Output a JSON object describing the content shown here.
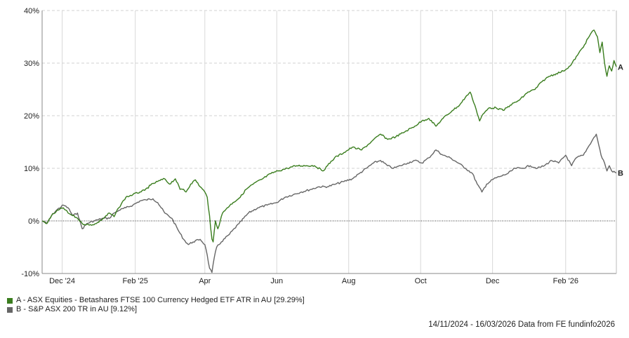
{
  "chart_data": {
    "type": "line",
    "y_axis": {
      "min": -10,
      "max": 40,
      "ticks": [
        -10,
        0,
        10,
        20,
        30,
        40
      ],
      "tick_labels": [
        "-10%",
        "0%",
        "10%",
        "20%",
        "30%",
        "40%"
      ]
    },
    "x_axis": {
      "start": "2024-11-14",
      "end": "2026-03-16",
      "ticks": [
        {
          "date": "2024-12-01",
          "label": "Dec '24"
        },
        {
          "date": "2025-02-01",
          "label": "Feb '25"
        },
        {
          "date": "2025-04-01",
          "label": "Apr"
        },
        {
          "date": "2025-06-01",
          "label": "Jun"
        },
        {
          "date": "2025-08-01",
          "label": "Aug"
        },
        {
          "date": "2025-10-01",
          "label": "Oct"
        },
        {
          "date": "2025-12-01",
          "label": "Dec"
        },
        {
          "date": "2026-02-01",
          "label": "Feb '26"
        }
      ]
    },
    "grid": true,
    "zero_line": true,
    "series": [
      {
        "id": "A",
        "name": "A - ASX Equities - Betashares FTSE 100 Currency Hedged ETF ATR in AU [29.29%]",
        "end_label": "A",
        "color": "#3a7d1e",
        "points": [
          [
            "2024-11-14",
            0
          ],
          [
            "2024-11-18",
            -0.5
          ],
          [
            "2024-11-22",
            1.0
          ],
          [
            "2024-11-26",
            1.8
          ],
          [
            "2024-12-02",
            2.5
          ],
          [
            "2024-12-06",
            1.5
          ],
          [
            "2024-12-10",
            1.0
          ],
          [
            "2024-12-14",
            0.5
          ],
          [
            "2024-12-18",
            -0.5
          ],
          [
            "2024-12-24",
            -0.8
          ],
          [
            "2024-12-30",
            -0.5
          ],
          [
            "2025-01-05",
            0.5
          ],
          [
            "2025-01-10",
            1.5
          ],
          [
            "2025-01-14",
            0.8
          ],
          [
            "2025-01-18",
            2.5
          ],
          [
            "2025-01-24",
            4.5
          ],
          [
            "2025-01-30",
            5.0
          ],
          [
            "2025-02-05",
            5.5
          ],
          [
            "2025-02-09",
            5.8
          ],
          [
            "2025-02-14",
            6.8
          ],
          [
            "2025-02-20",
            7.5
          ],
          [
            "2025-02-26",
            8.0
          ],
          [
            "2025-03-02",
            7.0
          ],
          [
            "2025-03-07",
            8.0
          ],
          [
            "2025-03-11",
            6.0
          ],
          [
            "2025-03-14",
            6.0
          ],
          [
            "2025-03-16",
            5.5
          ],
          [
            "2025-03-20",
            7.0
          ],
          [
            "2025-03-24",
            7.8
          ],
          [
            "2025-03-28",
            6.5
          ],
          [
            "2025-04-01",
            5.5
          ],
          [
            "2025-04-03",
            4.5
          ],
          [
            "2025-04-05",
            1.0
          ],
          [
            "2025-04-06",
            -1.5
          ],
          [
            "2025-04-07",
            -3.5
          ],
          [
            "2025-04-08",
            -4.0
          ],
          [
            "2025-04-10",
            0.0
          ],
          [
            "2025-04-12",
            -1.5
          ],
          [
            "2025-04-16",
            1.5
          ],
          [
            "2025-04-20",
            2.5
          ],
          [
            "2025-04-25",
            3.5
          ],
          [
            "2025-05-01",
            4.5
          ],
          [
            "2025-05-06",
            6.0
          ],
          [
            "2025-05-12",
            7.0
          ],
          [
            "2025-05-20",
            8.0
          ],
          [
            "2025-05-27",
            9.0
          ],
          [
            "2025-06-02",
            9.5
          ],
          [
            "2025-06-10",
            10.0
          ],
          [
            "2025-06-18",
            10.5
          ],
          [
            "2025-06-26",
            10.5
          ],
          [
            "2025-07-03",
            10.5
          ],
          [
            "2025-07-10",
            9.5
          ],
          [
            "2025-07-14",
            10.5
          ],
          [
            "2025-07-20",
            12.0
          ],
          [
            "2025-07-28",
            13.0
          ],
          [
            "2025-08-04",
            14.0
          ],
          [
            "2025-08-12",
            13.5
          ],
          [
            "2025-08-20",
            15.0
          ],
          [
            "2025-08-28",
            16.5
          ],
          [
            "2025-09-03",
            15.5
          ],
          [
            "2025-09-10",
            16.0
          ],
          [
            "2025-09-18",
            17.0
          ],
          [
            "2025-09-26",
            18.0
          ],
          [
            "2025-10-02",
            19.0
          ],
          [
            "2025-10-08",
            19.5
          ],
          [
            "2025-10-14",
            18.0
          ],
          [
            "2025-10-20",
            19.5
          ],
          [
            "2025-10-28",
            21.0
          ],
          [
            "2025-11-03",
            22.0
          ],
          [
            "2025-11-08",
            23.5
          ],
          [
            "2025-11-12",
            24.5
          ],
          [
            "2025-11-16",
            22.0
          ],
          [
            "2025-11-20",
            19.0
          ],
          [
            "2025-11-22",
            20.0
          ],
          [
            "2025-11-28",
            21.5
          ],
          [
            "2025-12-04",
            21.5
          ],
          [
            "2025-12-10",
            21.0
          ],
          [
            "2025-12-16",
            22.0
          ],
          [
            "2025-12-24",
            23.0
          ],
          [
            "2025-12-31",
            24.5
          ],
          [
            "2026-01-06",
            25.0
          ],
          [
            "2026-01-12",
            26.5
          ],
          [
            "2026-01-18",
            27.5
          ],
          [
            "2026-01-24",
            28.0
          ],
          [
            "2026-01-30",
            28.5
          ],
          [
            "2026-02-05",
            29.5
          ],
          [
            "2026-02-11",
            31.5
          ],
          [
            "2026-02-17",
            33.5
          ],
          [
            "2026-02-22",
            35.5
          ],
          [
            "2026-02-25",
            36.3
          ],
          [
            "2026-02-28",
            35.0
          ],
          [
            "2026-03-02",
            32.0
          ],
          [
            "2026-03-04",
            34.0
          ],
          [
            "2026-03-06",
            30.0
          ],
          [
            "2026-03-08",
            27.5
          ],
          [
            "2026-03-10",
            29.5
          ],
          [
            "2026-03-12",
            28.5
          ],
          [
            "2026-03-14",
            30.5
          ],
          [
            "2026-03-16",
            29.29
          ]
        ]
      },
      {
        "id": "B",
        "name": "B - S&P ASX 200 TR in AU [9.12%]",
        "end_label": "B",
        "color": "#666666",
        "points": [
          [
            "2024-11-14",
            0
          ],
          [
            "2024-11-18",
            -0.5
          ],
          [
            "2024-11-22",
            1.0
          ],
          [
            "2024-11-26",
            2.0
          ],
          [
            "2024-12-02",
            3.0
          ],
          [
            "2024-12-06",
            2.5
          ],
          [
            "2024-12-10",
            1.0
          ],
          [
            "2024-12-14",
            1.5
          ],
          [
            "2024-12-18",
            -1.5
          ],
          [
            "2024-12-22",
            -0.5
          ],
          [
            "2024-12-28",
            0.0
          ],
          [
            "2025-01-05",
            0.5
          ],
          [
            "2025-01-10",
            0.5
          ],
          [
            "2025-01-14",
            1.5
          ],
          [
            "2025-01-18",
            2.0
          ],
          [
            "2025-01-24",
            2.5
          ],
          [
            "2025-01-30",
            3.0
          ],
          [
            "2025-02-05",
            3.8
          ],
          [
            "2025-02-10",
            4.0
          ],
          [
            "2025-02-16",
            4.2
          ],
          [
            "2025-02-20",
            3.5
          ],
          [
            "2025-02-26",
            1.5
          ],
          [
            "2025-03-04",
            0.5
          ],
          [
            "2025-03-10",
            -2.0
          ],
          [
            "2025-03-14",
            -3.5
          ],
          [
            "2025-03-18",
            -4.5
          ],
          [
            "2025-03-22",
            -4.0
          ],
          [
            "2025-03-28",
            -3.5
          ],
          [
            "2025-04-01",
            -4.5
          ],
          [
            "2025-04-03",
            -6.5
          ],
          [
            "2025-04-05",
            -9.0
          ],
          [
            "2025-04-07",
            -9.8
          ],
          [
            "2025-04-09",
            -7.0
          ],
          [
            "2025-04-11",
            -5.0
          ],
          [
            "2025-04-15",
            -4.0
          ],
          [
            "2025-04-22",
            -2.5
          ],
          [
            "2025-04-30",
            -0.5
          ],
          [
            "2025-05-08",
            1.5
          ],
          [
            "2025-05-16",
            2.5
          ],
          [
            "2025-05-24",
            3.0
          ],
          [
            "2025-06-01",
            3.5
          ],
          [
            "2025-06-08",
            4.5
          ],
          [
            "2025-06-15",
            5.0
          ],
          [
            "2025-06-22",
            5.5
          ],
          [
            "2025-06-30",
            6.0
          ],
          [
            "2025-07-07",
            6.5
          ],
          [
            "2025-07-14",
            6.5
          ],
          [
            "2025-07-21",
            7.0
          ],
          [
            "2025-07-28",
            7.5
          ],
          [
            "2025-08-04",
            8.0
          ],
          [
            "2025-08-10",
            9.0
          ],
          [
            "2025-08-16",
            10.0
          ],
          [
            "2025-08-22",
            11.0
          ],
          [
            "2025-08-28",
            11.5
          ],
          [
            "2025-09-03",
            10.5
          ],
          [
            "2025-09-08",
            10.0
          ],
          [
            "2025-09-14",
            10.5
          ],
          [
            "2025-09-20",
            11.0
          ],
          [
            "2025-09-26",
            11.5
          ],
          [
            "2025-10-02",
            11.0
          ],
          [
            "2025-10-08",
            12.0
          ],
          [
            "2025-10-14",
            13.5
          ],
          [
            "2025-10-20",
            12.5
          ],
          [
            "2025-10-26",
            12.0
          ],
          [
            "2025-11-02",
            11.0
          ],
          [
            "2025-11-08",
            10.0
          ],
          [
            "2025-11-14",
            9.0
          ],
          [
            "2025-11-18",
            7.0
          ],
          [
            "2025-11-22",
            5.5
          ],
          [
            "2025-11-26",
            7.0
          ],
          [
            "2025-12-02",
            8.0
          ],
          [
            "2025-12-08",
            8.5
          ],
          [
            "2025-12-14",
            9.0
          ],
          [
            "2025-12-20",
            10.0
          ],
          [
            "2025-12-26",
            10.0
          ],
          [
            "2026-01-02",
            10.5
          ],
          [
            "2026-01-08",
            10.0
          ],
          [
            "2026-01-14",
            10.5
          ],
          [
            "2026-01-20",
            11.5
          ],
          [
            "2026-01-26",
            11.0
          ],
          [
            "2026-02-01",
            12.5
          ],
          [
            "2026-02-06",
            10.5
          ],
          [
            "2026-02-10",
            12.0
          ],
          [
            "2026-02-16",
            12.5
          ],
          [
            "2026-02-20",
            14.0
          ],
          [
            "2026-02-24",
            15.5
          ],
          [
            "2026-02-27",
            16.5
          ],
          [
            "2026-03-01",
            14.5
          ],
          [
            "2026-03-03",
            12.5
          ],
          [
            "2026-03-06",
            11.0
          ],
          [
            "2026-03-08",
            9.5
          ],
          [
            "2026-03-10",
            10.5
          ],
          [
            "2026-03-12",
            9.5
          ],
          [
            "2026-03-16",
            9.12
          ]
        ]
      }
    ]
  },
  "footer": "14/11/2024 - 16/03/2026 Data from FE fundinfo2026"
}
